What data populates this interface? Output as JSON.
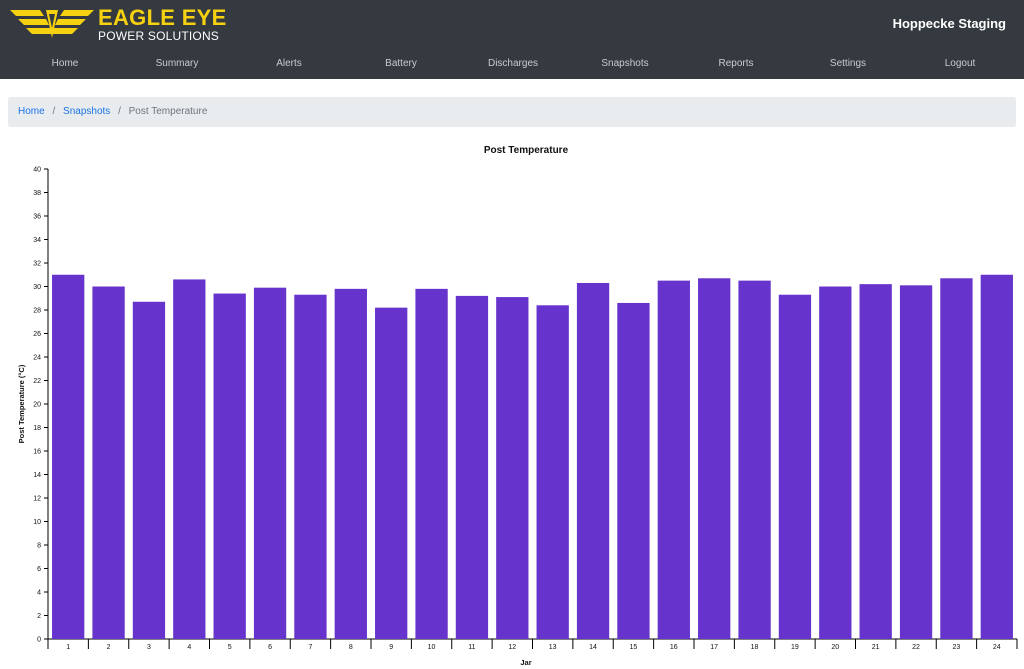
{
  "brand": {
    "title": "EAGLE EYE",
    "subtitle": "POWER SOLUTIONS",
    "colors": {
      "yellow": "#f5d10f",
      "header_bg": "#343a40"
    }
  },
  "header": {
    "site_name": "Hoppecke Staging"
  },
  "nav": {
    "items": [
      {
        "label": "Home"
      },
      {
        "label": "Summary"
      },
      {
        "label": "Alerts"
      },
      {
        "label": "Battery"
      },
      {
        "label": "Discharges"
      },
      {
        "label": "Snapshots"
      },
      {
        "label": "Reports"
      },
      {
        "label": "Settings"
      },
      {
        "label": "Logout"
      }
    ]
  },
  "breadcrumb": {
    "items": [
      {
        "label": "Home"
      },
      {
        "label": "Snapshots"
      }
    ],
    "separator": "/",
    "current": "Post Temperature"
  },
  "chart_data": {
    "type": "bar",
    "title": "Post Temperature",
    "xlabel": "Jar",
    "ylabel": "Post Temperature (°C)",
    "ylim": [
      0,
      40
    ],
    "yticks": [
      0,
      2,
      4,
      6,
      8,
      10,
      12,
      14,
      16,
      18,
      20,
      22,
      24,
      26,
      28,
      30,
      32,
      34,
      36,
      38,
      40
    ],
    "categories": [
      "1",
      "2",
      "3",
      "4",
      "5",
      "6",
      "7",
      "8",
      "9",
      "10",
      "11",
      "12",
      "13",
      "14",
      "15",
      "16",
      "17",
      "18",
      "19",
      "20",
      "21",
      "22",
      "23",
      "24"
    ],
    "values": [
      31.0,
      30.0,
      28.7,
      30.6,
      29.4,
      29.9,
      29.3,
      29.8,
      28.2,
      29.8,
      29.2,
      29.1,
      28.4,
      30.3,
      28.6,
      30.5,
      30.7,
      30.5,
      29.3,
      30.0,
      30.2,
      30.1,
      30.7,
      31.0
    ],
    "bar_color": "#6633cc",
    "grid": false,
    "legend": false
  }
}
